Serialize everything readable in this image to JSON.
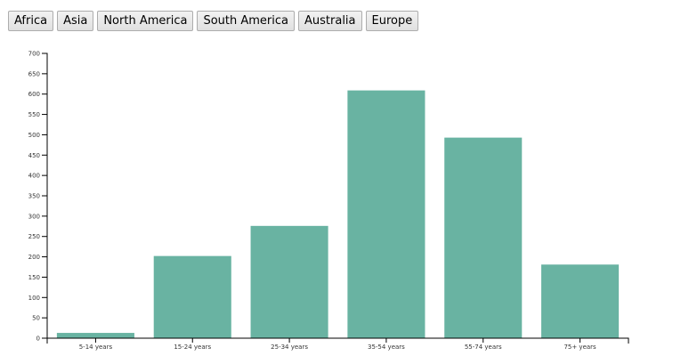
{
  "toolbar": {
    "buttons": [
      {
        "id": "africa",
        "label": "Africa"
      },
      {
        "id": "asia",
        "label": "Asia"
      },
      {
        "id": "north-america",
        "label": "North America"
      },
      {
        "id": "south-america",
        "label": "South America"
      },
      {
        "id": "australia",
        "label": "Australia"
      },
      {
        "id": "europe",
        "label": "Europe"
      }
    ]
  },
  "chart_data": {
    "type": "bar",
    "title": "",
    "xlabel": "",
    "ylabel": "",
    "categories": [
      "5-14 years",
      "15-24 years",
      "25-34 years",
      "35-54 years",
      "55-74 years",
      "75+ years"
    ],
    "values": [
      13,
      202,
      276,
      609,
      493,
      181
    ],
    "ylim": [
      0,
      700
    ],
    "yticks": [
      0,
      50,
      100,
      150,
      200,
      250,
      300,
      350,
      400,
      450,
      500,
      550,
      600,
      650,
      700
    ],
    "bar_color": "#69b3a2",
    "grid": false,
    "legend": "none"
  }
}
